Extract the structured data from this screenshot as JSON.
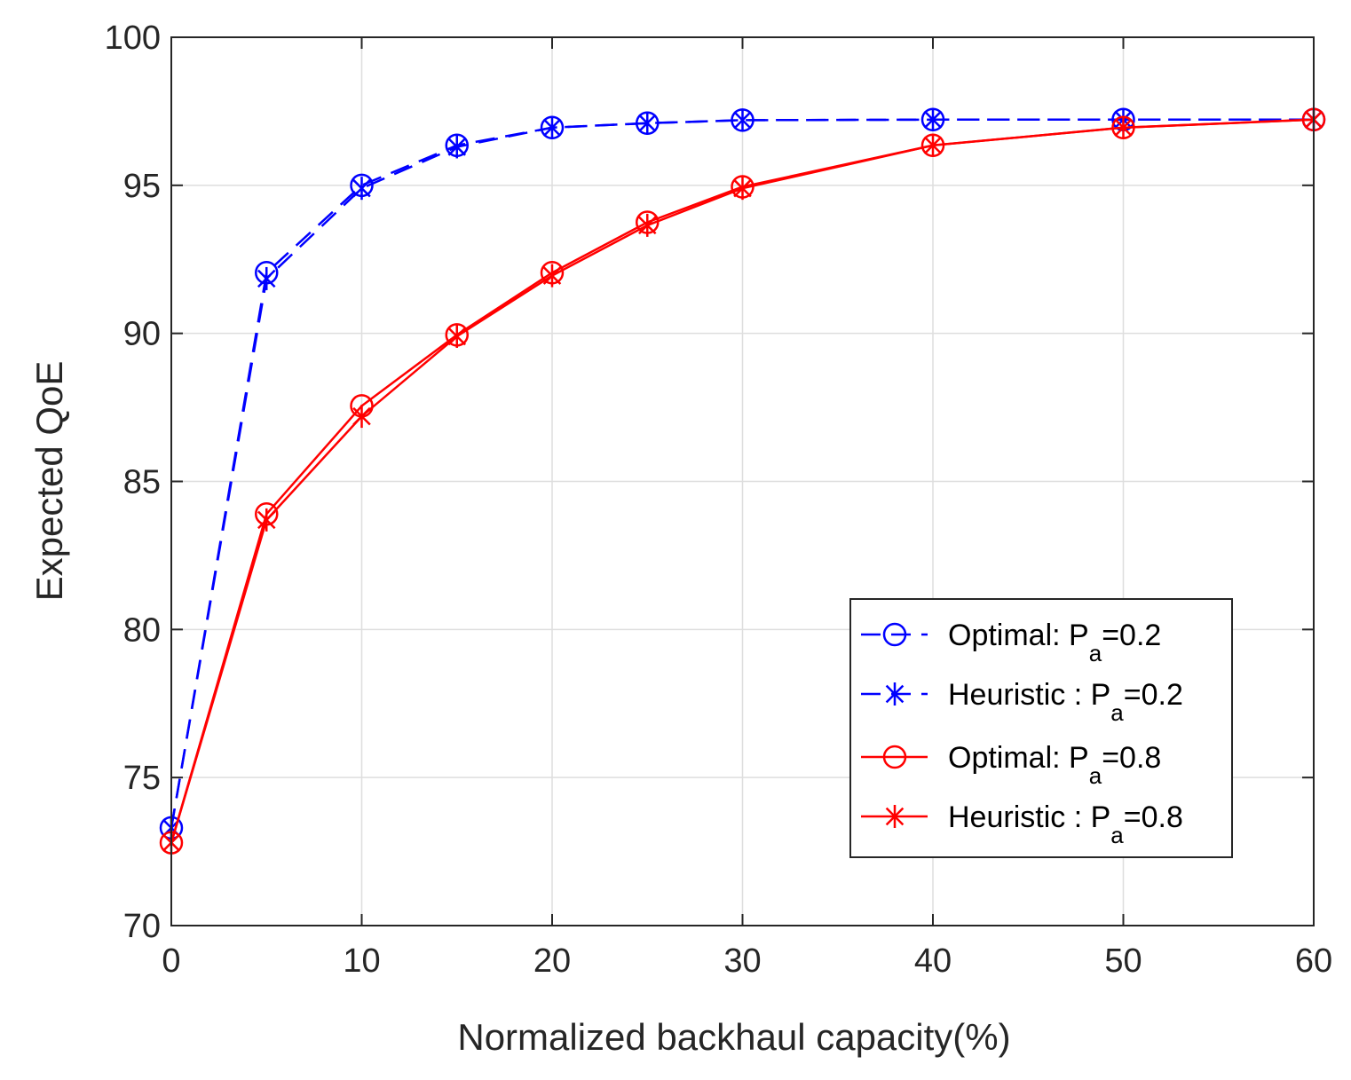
{
  "chart_data": {
    "type": "line",
    "title": "",
    "xlabel": "Normalized backhaul capacity(%)",
    "ylabel": "Expected QoE",
    "xlim": [
      0,
      60
    ],
    "ylim": [
      70,
      100
    ],
    "xticks": [
      0,
      10,
      20,
      30,
      40,
      50,
      60
    ],
    "yticks": [
      70,
      75,
      80,
      85,
      90,
      95,
      100
    ],
    "xtick_labels": [
      "0",
      "10",
      "20",
      "30",
      "40",
      "50",
      "60"
    ],
    "ytick_labels": [
      "70",
      "75",
      "80",
      "85",
      "90",
      "95",
      "100"
    ],
    "grid": true,
    "legend_position": "bottom-right",
    "x": [
      0,
      5,
      10,
      15,
      20,
      25,
      30,
      40,
      50,
      60
    ],
    "series": [
      {
        "name": "Optimal: P_a=0.2",
        "label_main": "Optimal: P",
        "label_sub": "a",
        "label_tail": "=0.2",
        "color": "#0000ff",
        "line": "dashed",
        "marker": "circle",
        "values": [
          73.3,
          92.05,
          95.0,
          96.35,
          96.95,
          97.1,
          97.2,
          97.22,
          97.22,
          97.22
        ]
      },
      {
        "name": "Heuristic : P_a=0.2",
        "label_main": "Heuristic : P",
        "label_sub": "a",
        "label_tail": "=0.2",
        "color": "#0000ff",
        "line": "dashed",
        "marker": "star",
        "values": [
          73.3,
          91.85,
          94.9,
          96.3,
          96.95,
          97.1,
          97.2,
          97.22,
          97.22,
          97.22
        ]
      },
      {
        "name": "Optimal: P_a=0.8",
        "label_main": "Optimal: P",
        "label_sub": "a",
        "label_tail": "=0.8",
        "color": "#ff0000",
        "line": "solid",
        "marker": "circle",
        "values": [
          72.8,
          83.9,
          87.55,
          89.95,
          92.05,
          93.75,
          94.95,
          96.35,
          96.95,
          97.22
        ]
      },
      {
        "name": "Heuristic : P_a=0.8",
        "label_main": "Heuristic : P",
        "label_sub": "a",
        "label_tail": "=0.8",
        "color": "#ff0000",
        "line": "solid",
        "marker": "star",
        "values": [
          72.8,
          83.7,
          87.2,
          89.9,
          91.95,
          93.65,
          94.9,
          96.35,
          96.95,
          97.22
        ]
      }
    ]
  }
}
